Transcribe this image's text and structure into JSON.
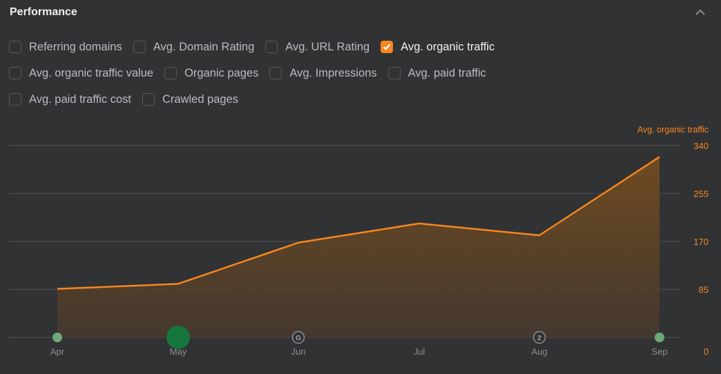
{
  "header": {
    "title": "Performance",
    "collapse_icon": "chevron-up-icon"
  },
  "metrics": [
    [
      {
        "label": "Referring domains",
        "checked": false
      },
      {
        "label": "Avg. Domain Rating",
        "checked": false
      },
      {
        "label": "Avg. URL Rating",
        "checked": false
      },
      {
        "label": "Avg. organic traffic",
        "checked": true
      }
    ],
    [
      {
        "label": "Avg. organic traffic value",
        "checked": false
      },
      {
        "label": "Organic pages",
        "checked": false
      },
      {
        "label": "Avg. Impressions",
        "checked": false
      },
      {
        "label": "Avg. paid traffic",
        "checked": false
      }
    ],
    [
      {
        "label": "Avg. paid traffic cost",
        "checked": false
      },
      {
        "label": "Crawled pages",
        "checked": false
      }
    ]
  ],
  "colors": {
    "accent": "#f7871f",
    "background": "#313234",
    "grid": "#45474a",
    "marker_green": "#6fa876",
    "marker_green_large": "#15763c"
  },
  "chart_data": {
    "type": "area",
    "title": "Performance",
    "series": [
      {
        "name": "Avg. organic traffic",
        "values": [
          86,
          95,
          168,
          202,
          181,
          320
        ]
      }
    ],
    "categories": [
      "Apr",
      "May",
      "Jun",
      "Jul",
      "Aug",
      "Sep"
    ],
    "ylabel": "Avg. organic traffic",
    "y_ticks": [
      0,
      85,
      170,
      255,
      340
    ],
    "ylim": [
      0,
      340
    ],
    "grid": true,
    "legend_position": "top-right",
    "annotations": [
      {
        "x": "Apr",
        "type": "dot",
        "color": "#6fa876"
      },
      {
        "x": "May",
        "type": "large-dot",
        "color": "#15763c"
      },
      {
        "x": "Jun",
        "type": "google-update-icon",
        "label": "G"
      },
      {
        "x": "Aug",
        "type": "count-badge",
        "label": "2"
      },
      {
        "x": "Sep",
        "type": "dot",
        "color": "#6fa876"
      }
    ]
  }
}
